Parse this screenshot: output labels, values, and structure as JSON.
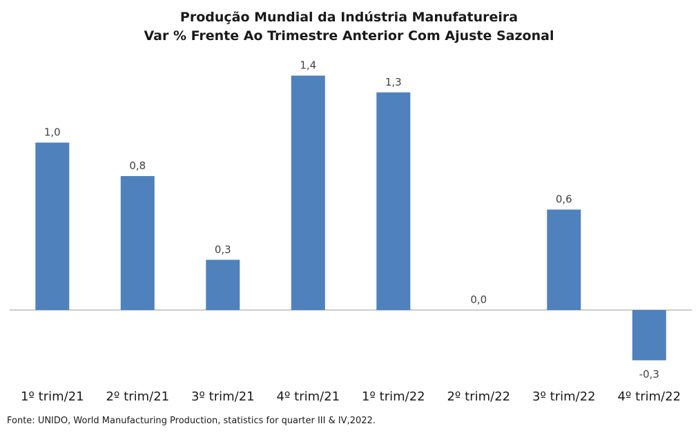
{
  "chart_data": {
    "type": "bar",
    "title": "Produção Mundial da Indústria Manufatureira",
    "subtitle": "Var % Frente Ao Trimestre Anterior Com Ajuste Sazonal",
    "categories": [
      "1º trim/21",
      "2º trim/21",
      "3º trim/21",
      "4º trim/21",
      "1º trim/22",
      "2º trim/22",
      "3º trim/22",
      "4º trim/22"
    ],
    "values": [
      1.0,
      0.8,
      0.3,
      1.4,
      1.3,
      0.0,
      0.6,
      -0.3
    ],
    "data_labels": [
      "1,0",
      "0,8",
      "0,3",
      "1,4",
      "1,3",
      "0,0",
      "0,6",
      "-0,3"
    ],
    "ylim": [
      -0.4,
      1.5
    ],
    "grid": false,
    "bar_color": "#4F81BD"
  },
  "source": "Fonte: UNIDO, World Manufacturing Production,  statistics for quarter  III & IV,2022."
}
